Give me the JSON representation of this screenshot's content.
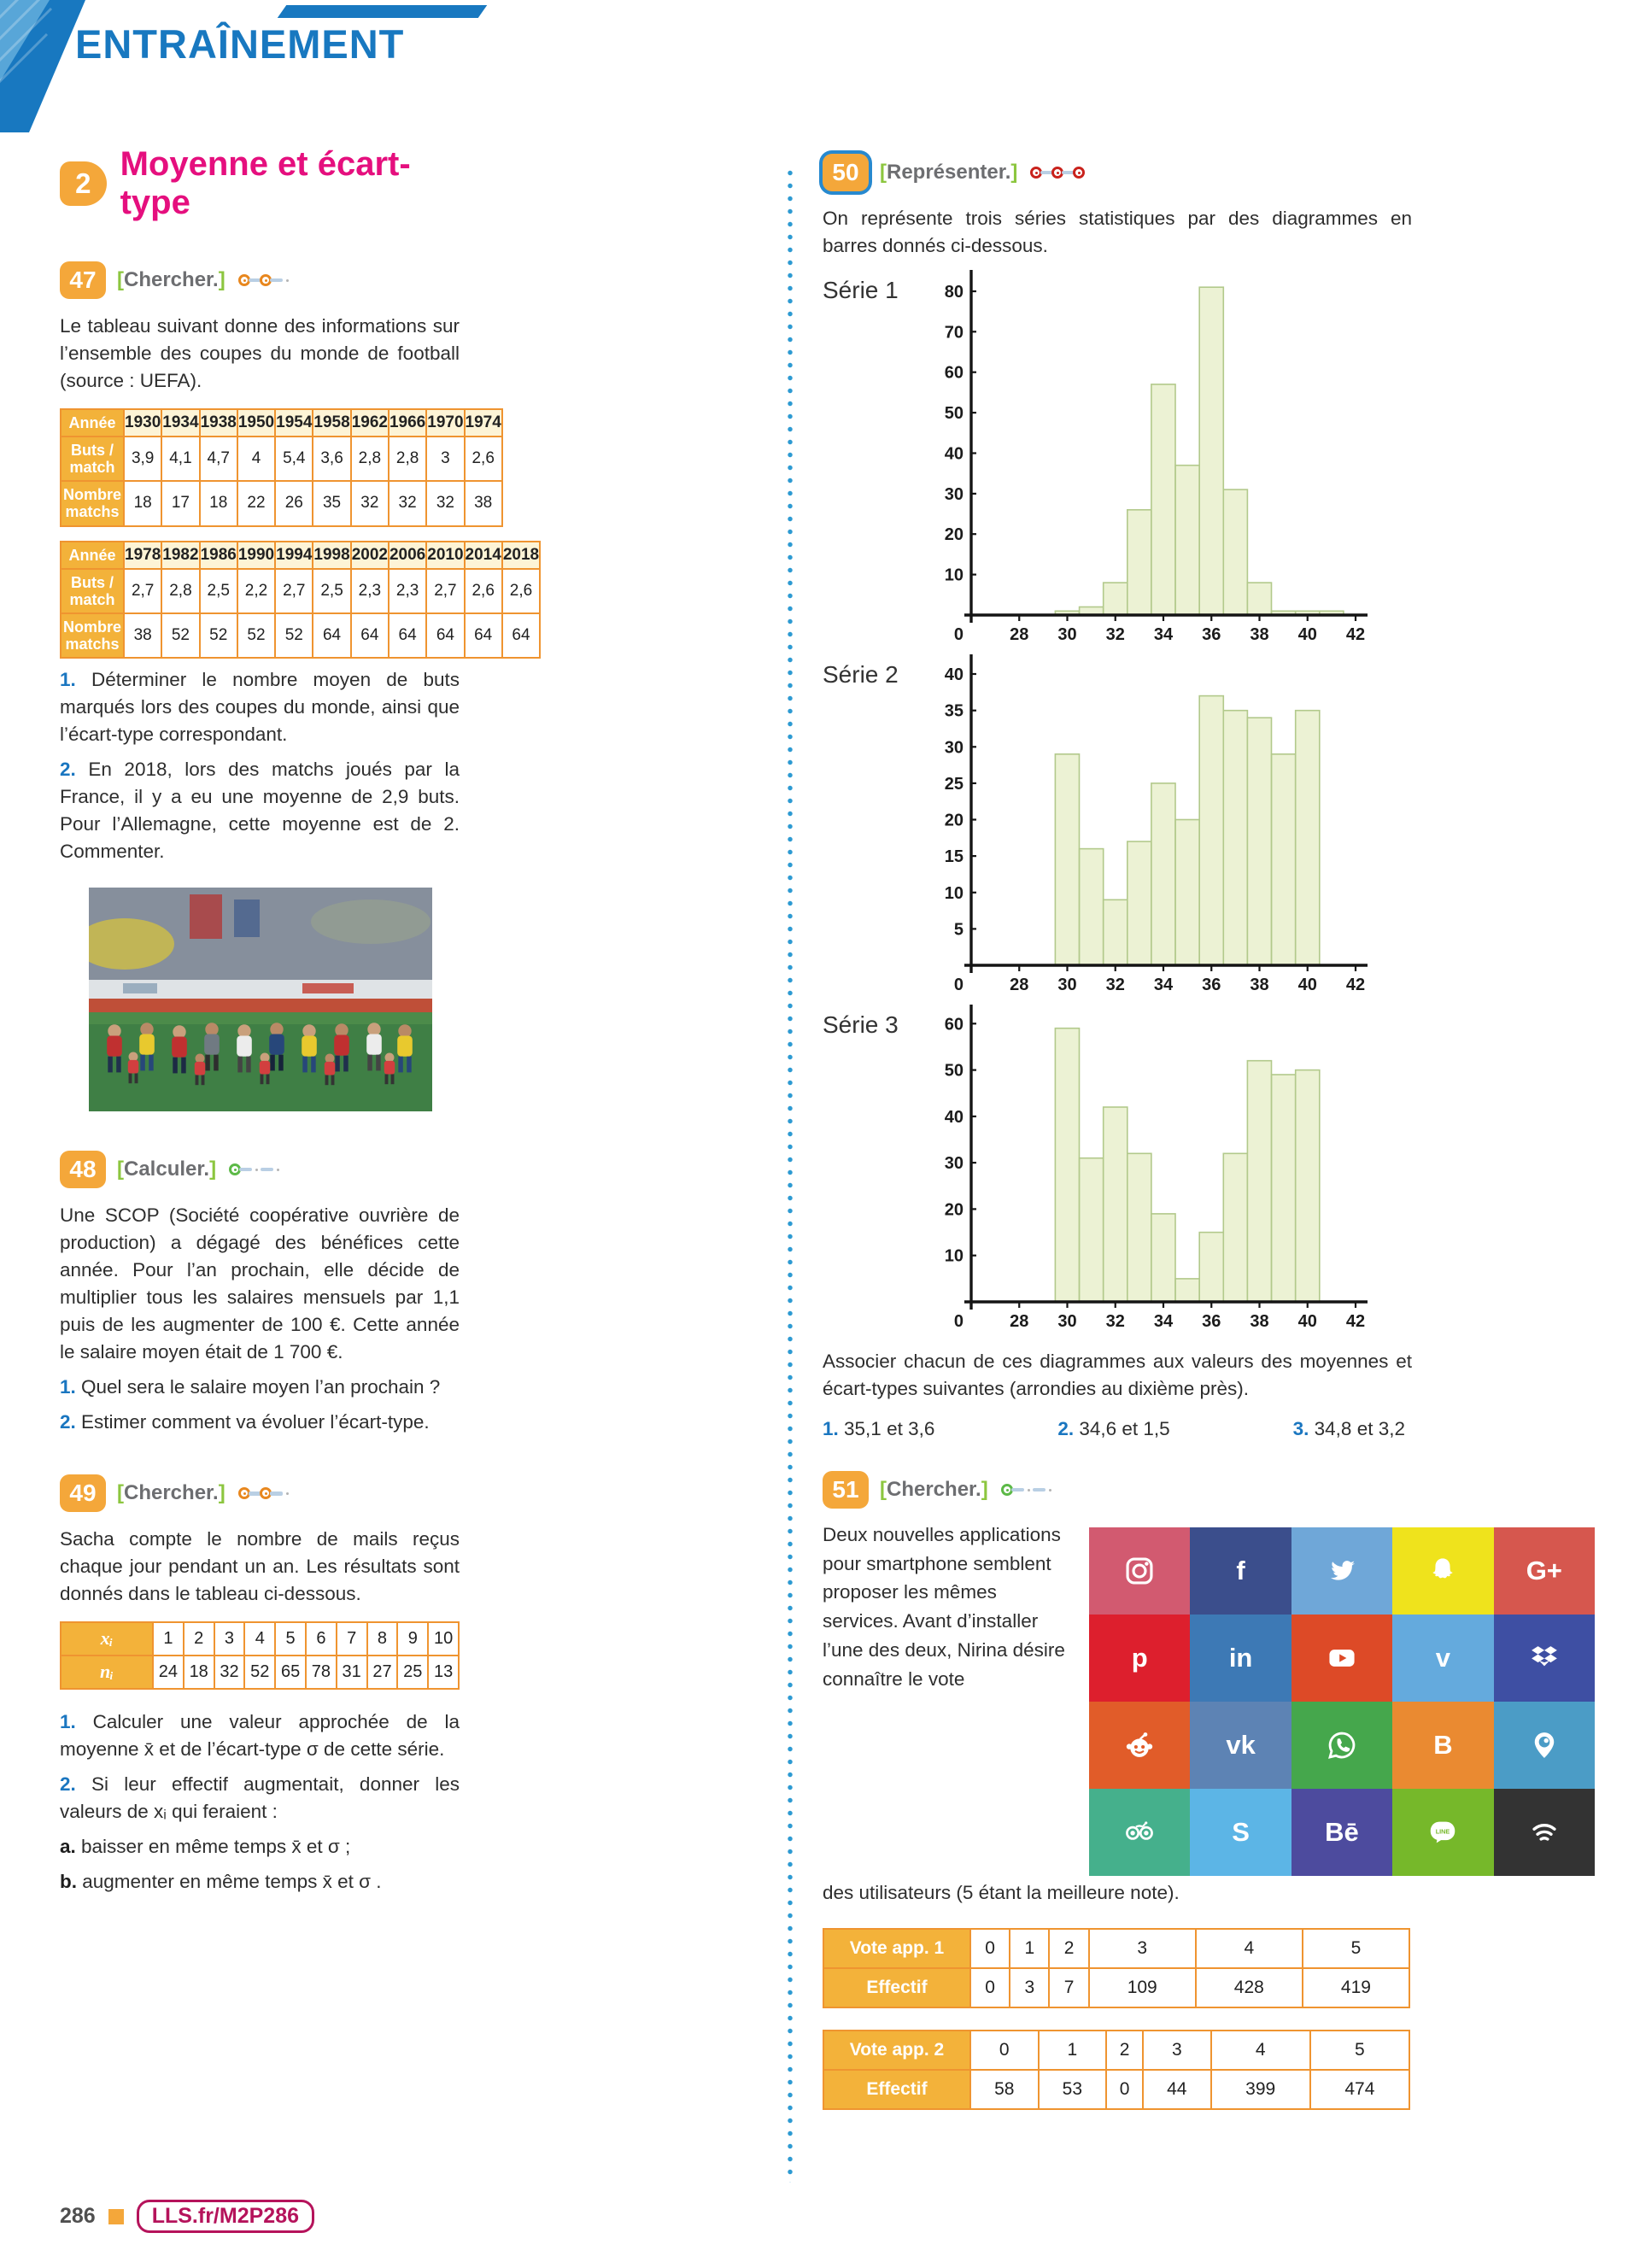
{
  "ui": {
    "bracket_l": "[",
    "bracket_r": "]"
  },
  "header": {
    "title": "ENTRAÎNEMENT"
  },
  "section": {
    "number": "2",
    "title": "Moyenne et écart-type"
  },
  "footer": {
    "page": "286",
    "code": "LLS.fr/M2P286"
  },
  "ex47": {
    "number": "47",
    "method": "Chercher.",
    "dots": [
      "orange",
      "orange",
      "gray"
    ],
    "intro": "Le tableau suivant donne des informations sur l’ensemble des coupes du monde de football (source : UEFA).",
    "table1": {
      "rows": [
        {
          "label": "Année",
          "kind": "year",
          "values": [
            "1930",
            "1934",
            "1938",
            "1950",
            "1954",
            "1958",
            "1962",
            "1966",
            "1970",
            "1974"
          ]
        },
        {
          "label": "Buts / match",
          "kind": "data",
          "values": [
            "3,9",
            "4,1",
            "4,7",
            "4",
            "5,4",
            "3,6",
            "2,8",
            "2,8",
            "3",
            "2,6"
          ]
        },
        {
          "label": "Nombre matchs",
          "kind": "data",
          "values": [
            "18",
            "17",
            "18",
            "22",
            "26",
            "35",
            "32",
            "32",
            "32",
            "38"
          ]
        }
      ]
    },
    "table2": {
      "rows": [
        {
          "label": "Année",
          "kind": "year",
          "values": [
            "1978",
            "1982",
            "1986",
            "1990",
            "1994",
            "1998",
            "2002",
            "2006",
            "2010",
            "2014",
            "2018"
          ]
        },
        {
          "label": "Buts / match",
          "kind": "data",
          "values": [
            "2,7",
            "2,8",
            "2,5",
            "2,2",
            "2,7",
            "2,5",
            "2,3",
            "2,3",
            "2,7",
            "2,6",
            "2,6"
          ]
        },
        {
          "label": "Nombre matchs",
          "kind": "data",
          "values": [
            "38",
            "52",
            "52",
            "52",
            "52",
            "64",
            "64",
            "64",
            "64",
            "64",
            "64"
          ]
        }
      ]
    },
    "q1_num": "1.",
    "q1": "Déterminer le nombre moyen de buts marqués lors des coupes du monde, ainsi que l’écart-type correspondant.",
    "q2_num": "2.",
    "q2": "En 2018, lors des matchs joués par la France, il y a eu une moyenne de 2,9 buts. Pour l’Allemagne, cette moyenne est de 2. Commenter."
  },
  "ex48": {
    "number": "48",
    "method": "Calculer.",
    "dots": [
      "green",
      "gray",
      "gray"
    ],
    "intro": "Une SCOP (Société coopérative ouvrière de production) a dégagé des bénéfices cette année. Pour l’an prochain, elle décide de multiplier tous les salaires mensuels par 1,1 puis de les augmenter de 100 €. Cette année le salaire moyen était de 1 700 €.",
    "q1_num": "1.",
    "q1": "Quel sera le salaire moyen l’an prochain ?",
    "q2_num": "2.",
    "q2": "Estimer comment va évoluer l’écart-type."
  },
  "ex49": {
    "number": "49",
    "method": "Chercher.",
    "dots": [
      "orange",
      "orange",
      "gray"
    ],
    "intro": "Sacha compte le nombre de mails reçus chaque jour pendant un an. Les résultats sont donnés dans le tableau ci-dessous.",
    "table": {
      "rows": [
        {
          "label": "xᵢ",
          "kind": "data",
          "values": [
            "1",
            "2",
            "3",
            "4",
            "5",
            "6",
            "7",
            "8",
            "9",
            "10"
          ]
        },
        {
          "label": "nᵢ",
          "kind": "data",
          "values": [
            "24",
            "18",
            "32",
            "52",
            "65",
            "78",
            "31",
            "27",
            "25",
            "13"
          ]
        }
      ]
    },
    "q1_num": "1.",
    "q1": "Calculer une valeur approchée de la moyenne x̄ et de l’écart-type σ de cette série.",
    "q2_num": "2.",
    "q2": "Si leur effectif augmentait, donner les valeurs de xᵢ qui feraient :",
    "a_num": "a.",
    "a": "baisser en même temps x̄ et σ ;",
    "b_num": "b.",
    "b": "augmenter en même temps x̄ et σ ."
  },
  "ex50": {
    "number": "50",
    "method": "Représenter.",
    "dots": [
      "red",
      "red",
      "red"
    ],
    "intro": "On représente trois séries statistiques par des diagrammes en barres donnés ci-dessous.",
    "outro": "Associer chacun de ces diagrammes aux valeurs des moyennes et écart-types suivantes (arrondies au dixième près).",
    "answers": [
      {
        "num": "1.",
        "text": "35,1 et 3,6"
      },
      {
        "num": "2.",
        "text": "34,6 et 1,5"
      },
      {
        "num": "3.",
        "text": "34,8 et 3,2"
      }
    ]
  },
  "ex51": {
    "number": "51",
    "method": "Chercher.",
    "dots": [
      "green",
      "gray",
      "gray"
    ],
    "intro": "Deux nouvelles applications pour smartphone semblent proposer les mêmes services. Avant d’installer l’une des deux, Nirina désire connaître le vote",
    "intro2": "des utilisateurs (5 étant la meilleure note).",
    "vote1": {
      "rows": [
        {
          "label": "Vote app. 1",
          "kind": "data",
          "values": [
            "0",
            "1",
            "2",
            "3",
            "4",
            "5"
          ]
        },
        {
          "label": "Effectif",
          "kind": "data",
          "values": [
            "0",
            "3",
            "7",
            "109",
            "428",
            "419"
          ]
        }
      ]
    },
    "vote2": {
      "rows": [
        {
          "label": "Vote app. 2",
          "kind": "data",
          "values": [
            "0",
            "1",
            "2",
            "3",
            "4",
            "5"
          ]
        },
        {
          "label": "Effectif",
          "kind": "data",
          "values": [
            "58",
            "53",
            "0",
            "44",
            "399",
            "474"
          ]
        }
      ]
    },
    "social": {
      "tiles": [
        {
          "name": "instagram",
          "bg": "#d25a70",
          "type": "camera"
        },
        {
          "name": "facebook",
          "bg": "#3b4e8c",
          "type": "text",
          "text": "f"
        },
        {
          "name": "twitter",
          "bg": "#6fa7d8",
          "type": "bird"
        },
        {
          "name": "snapchat",
          "bg": "#efe31c",
          "type": "ghost"
        },
        {
          "name": "google-plus",
          "bg": "#d6574e",
          "type": "text",
          "text": "G+"
        },
        {
          "name": "pinterest",
          "bg": "#dd1f2d",
          "type": "text",
          "text": "p"
        },
        {
          "name": "linkedin",
          "bg": "#3d79b5",
          "type": "text",
          "text": "in"
        },
        {
          "name": "youtube",
          "bg": "#dd4a27",
          "type": "play"
        },
        {
          "name": "vimeo",
          "bg": "#64aadd",
          "type": "text",
          "text": "v"
        },
        {
          "name": "dropbox",
          "bg": "#3e4fa3",
          "type": "drop"
        },
        {
          "name": "reddit",
          "bg": "#e15c29",
          "type": "reddit"
        },
        {
          "name": "vk",
          "bg": "#5d83b4",
          "type": "text",
          "text": "vk"
        },
        {
          "name": "whatsapp",
          "bg": "#45a74c",
          "type": "phone"
        },
        {
          "name": "blogger",
          "bg": "#ea8a31",
          "type": "text",
          "text": "B"
        },
        {
          "name": "periscope",
          "bg": "#4b9cc6",
          "type": "pin"
        },
        {
          "name": "tripadvisor",
          "bg": "#45b08c",
          "type": "owl"
        },
        {
          "name": "skype",
          "bg": "#5cb5e6",
          "type": "text",
          "text": "S"
        },
        {
          "name": "behance",
          "bg": "#4d4b9e",
          "type": "text",
          "text": "Bē"
        },
        {
          "name": "line",
          "bg": "#76b82a",
          "type": "bubble",
          "text": "LINE"
        },
        {
          "name": "spotify",
          "bg": "#333333",
          "type": "arcs"
        }
      ]
    }
  },
  "chart_data": [
    {
      "type": "bar",
      "title": "Série 1",
      "x": [
        30,
        31,
        32,
        33,
        34,
        35,
        36,
        37,
        38,
        39,
        40,
        41
      ],
      "values": [
        1,
        2,
        8,
        26,
        57,
        37,
        81,
        31,
        8,
        1,
        1,
        1
      ],
      "xticks": [
        28,
        30,
        32,
        34,
        36,
        38,
        40,
        42
      ],
      "ylim": [
        0,
        80
      ],
      "ystep": 10,
      "xlabel": "",
      "ylabel": ""
    },
    {
      "type": "bar",
      "title": "Série 2",
      "x": [
        30,
        31,
        32,
        33,
        34,
        35,
        36,
        37,
        38,
        39,
        40
      ],
      "values": [
        29,
        16,
        9,
        17,
        25,
        20,
        37,
        35,
        34,
        29,
        35
      ],
      "xticks": [
        28,
        30,
        32,
        34,
        36,
        38,
        40,
        42
      ],
      "ylim": [
        0,
        40
      ],
      "ystep": 5,
      "xlabel": "",
      "ylabel": ""
    },
    {
      "type": "bar",
      "title": "Série 3",
      "x": [
        30,
        31,
        32,
        33,
        34,
        35,
        36,
        37,
        38,
        39,
        40
      ],
      "values": [
        59,
        31,
        42,
        32,
        19,
        5,
        15,
        32,
        52,
        49,
        50
      ],
      "xticks": [
        28,
        30,
        32,
        34,
        36,
        38,
        40,
        42
      ],
      "ylim": [
        0,
        60
      ],
      "ystep": 10,
      "xlabel": "",
      "ylabel": ""
    }
  ]
}
